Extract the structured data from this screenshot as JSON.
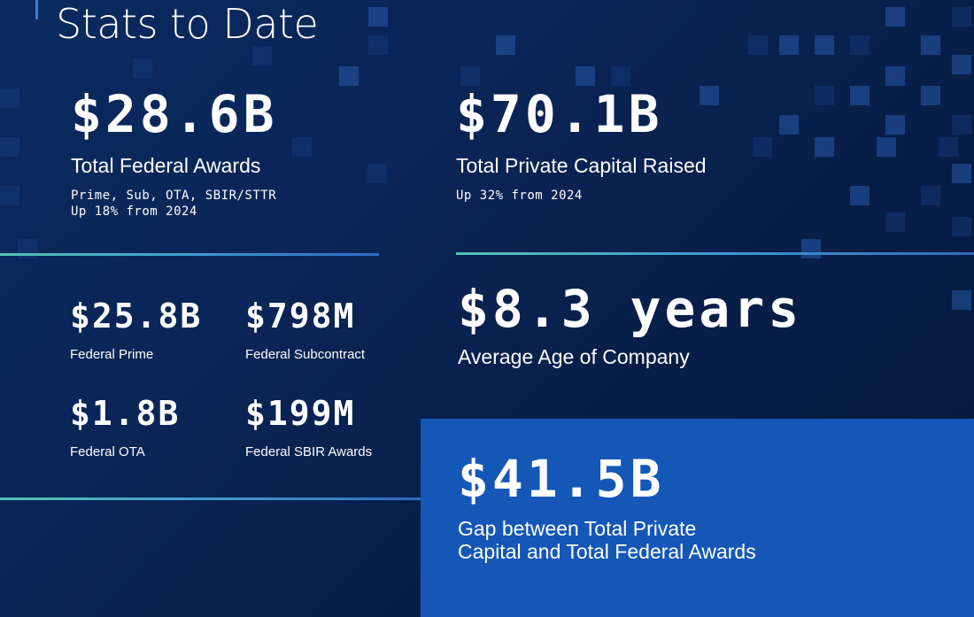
{
  "header": {
    "title": "Stats to Date"
  },
  "stats": {
    "federal_awards": {
      "value": "$28.6B",
      "label": "Total Federal Awards",
      "detail_1": "Prime, Sub, OTA, SBIR/STTR",
      "detail_2": "Up 18% from 2024"
    },
    "private_capital": {
      "value": "$70.1B",
      "label": "Total Private Capital Raised",
      "detail_1": "Up 32% from 2024"
    },
    "federal_prime": {
      "value": "$25.8B",
      "label": "Federal Prime"
    },
    "federal_subcontract": {
      "value": "$798M",
      "label": "Federal Subcontract"
    },
    "federal_ota": {
      "value": "$1.8B",
      "label": "Federal OTA"
    },
    "federal_sbir": {
      "value": "$199M",
      "label": "Federal SBIR Awards"
    },
    "company_age": {
      "value": "$8.3 years",
      "label": "Average Age of Company"
    },
    "gap": {
      "value": "$41.5B",
      "label_line_1": "Gap between Total Private",
      "label_line_2": "Capital and Total Federal Awards"
    }
  },
  "colors": {
    "background": "#0a2557",
    "highlight_box": "#1457b7",
    "divider_start": "#53c4b2",
    "divider_end": "#2f6bc2",
    "text": "#ffffff"
  }
}
